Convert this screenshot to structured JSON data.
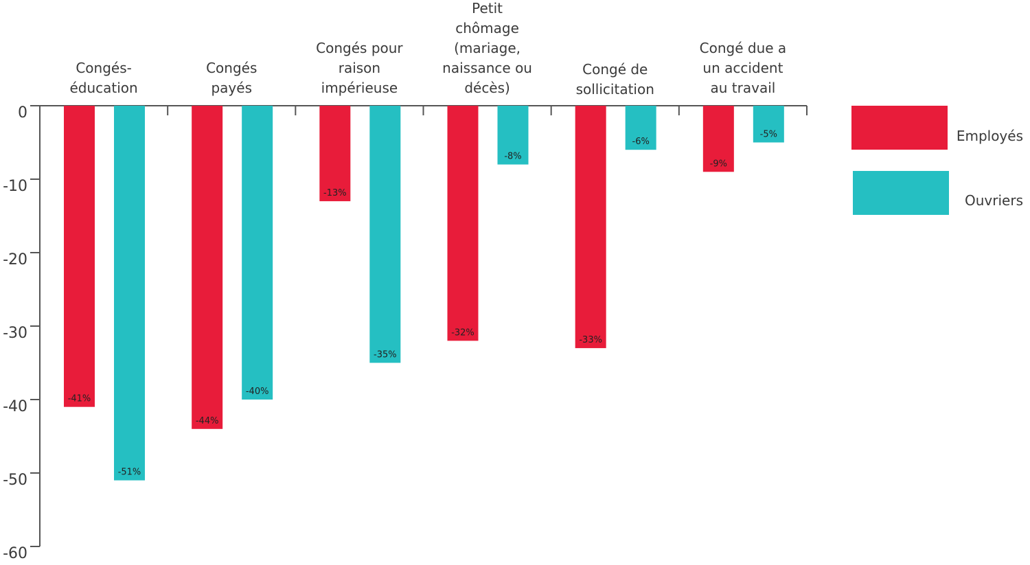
{
  "chart_data": {
    "type": "bar",
    "categories": [
      [
        "Congés-",
        "éducation"
      ],
      [
        "Congés",
        "payés"
      ],
      [
        "Congés pour",
        "raison",
        "impérieuse"
      ],
      [
        "Petit",
        "chômage",
        "(mariage,",
        "naissance ou",
        "décès)"
      ],
      [
        "Congé de",
        "sollicitation"
      ],
      [
        "Congé due a",
        "un accident",
        "au travail"
      ]
    ],
    "series": [
      {
        "name": "Employés",
        "color": "#E81C3A",
        "values": [
          -41,
          -44,
          -13,
          -32,
          -33,
          -9
        ],
        "labels": [
          "-41%",
          "-44%",
          "-13%",
          "-32%",
          "-33%",
          "-9%"
        ]
      },
      {
        "name": "Ouvriers",
        "color": "#25BFC2",
        "values": [
          -51,
          -40,
          -35,
          -8,
          -6,
          -5
        ],
        "labels": [
          "-51%",
          "-40%",
          "-35%",
          "-8%",
          "-6%",
          "-5%"
        ]
      }
    ],
    "ylim": [
      -60,
      0
    ],
    "yticks": [
      0,
      -10,
      -20,
      -30,
      -40,
      -50,
      -60
    ],
    "ytick_labels": [
      "0",
      "-10",
      "-20",
      "-30",
      "-40",
      "-50",
      "-60"
    ],
    "axis_color": "#555555",
    "legend_position": "right"
  }
}
